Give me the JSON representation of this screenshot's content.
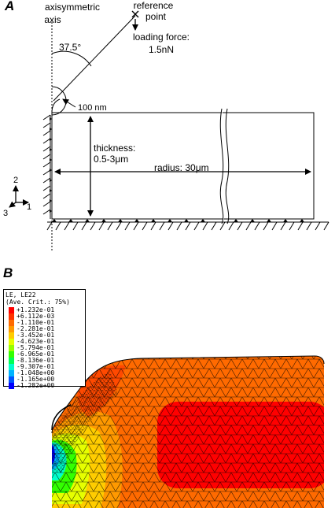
{
  "panel_a": {
    "label": "A",
    "axis_label_line1": "axisymmetric",
    "axis_label_line2": "axis",
    "reference_line1": "reference",
    "reference_line2": "point",
    "angle": "37.5°",
    "force_line1": "loading force:",
    "force_line2": "1.5nN",
    "tip_radius": "100 nm",
    "thickness_line1": "thickness:",
    "thickness_line2": "0.5-3μm",
    "radius": "radius: 30μm",
    "coord_2": "2",
    "coord_1": "1",
    "coord_3": "3"
  },
  "panel_b": {
    "label": "B",
    "legend_title_line1": "LE, LE22",
    "legend_title_line2": "(Ave. Crit.: 75%)",
    "legend": [
      {
        "value": "+1.232e-01",
        "color": "#ff0000"
      },
      {
        "value": "+6.112e-03",
        "color": "#ff3300"
      },
      {
        "value": "-1.110e-01",
        "color": "#ff6a00"
      },
      {
        "value": "-2.281e-01",
        "color": "#ff9900"
      },
      {
        "value": "-3.452e-01",
        "color": "#ffcc00"
      },
      {
        "value": "-4.623e-01",
        "color": "#e6ff00"
      },
      {
        "value": "-5.794e-01",
        "color": "#99ff00"
      },
      {
        "value": "-6.965e-01",
        "color": "#33ff00"
      },
      {
        "value": "-8.136e-01",
        "color": "#00ff55"
      },
      {
        "value": "-9.307e-01",
        "color": "#00ffcc"
      },
      {
        "value": "-1.048e+00",
        "color": "#00b3ff"
      },
      {
        "value": "-1.165e+00",
        "color": "#0055ff"
      },
      {
        "value": "-1.282e+00",
        "color": "#0000ff"
      }
    ]
  }
}
